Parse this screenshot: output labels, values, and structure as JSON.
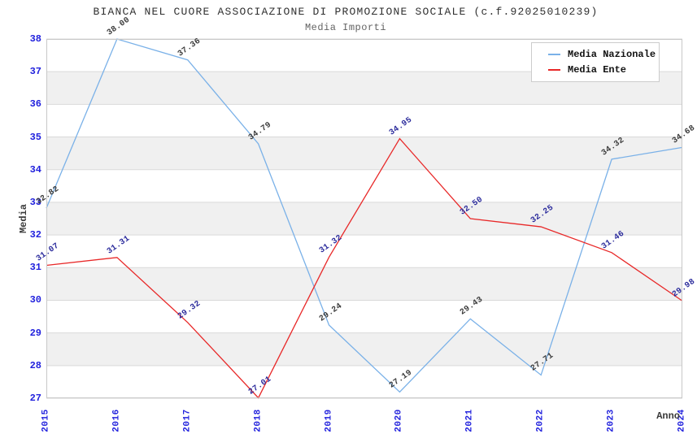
{
  "header": {
    "title": "BIANCA NEL CUORE ASSOCIAZIONE DI PROMOZIONE SOCIALE (c.f.92025010239)",
    "subtitle": "Media Importi"
  },
  "legend": {
    "items": [
      {
        "label": "Media Nazionale",
        "color": "#7ab1e8"
      },
      {
        "label": "Media Ente",
        "color": "#e82828"
      }
    ]
  },
  "chart_data": {
    "type": "line",
    "title": "BIANCA NEL CUORE ASSOCIAZIONE DI PROMOZIONE SOCIALE (c.f.92025010239)",
    "subtitle": "Media Importi",
    "xlabel": "Anno",
    "ylabel": "Media",
    "x": [
      2015,
      2016,
      2017,
      2018,
      2019,
      2020,
      2021,
      2022,
      2023,
      2024
    ],
    "series": [
      {
        "name": "Media Nazionale",
        "color": "#7ab1e8",
        "label_color": "#3a3a3a",
        "values": [
          32.82,
          38.0,
          37.36,
          34.79,
          29.24,
          27.19,
          29.43,
          27.71,
          34.32,
          34.68
        ]
      },
      {
        "name": "Media Ente",
        "color": "#e82828",
        "label_color": "#2b2b9c",
        "values": [
          31.07,
          31.31,
          29.32,
          27.01,
          31.32,
          34.95,
          32.5,
          32.25,
          31.46,
          29.98
        ]
      }
    ],
    "ylim": [
      27,
      38
    ],
    "yticks": [
      27,
      28,
      29,
      30,
      31,
      32,
      33,
      34,
      35,
      36,
      37,
      38
    ],
    "grid": true,
    "legend_position": "top-right",
    "band_colors": [
      "#ffffff",
      "#f0f0f0"
    ],
    "grid_color": "#d9d9d9",
    "spine_color": "#c8c8c8",
    "tick_color": "#2222dd"
  }
}
